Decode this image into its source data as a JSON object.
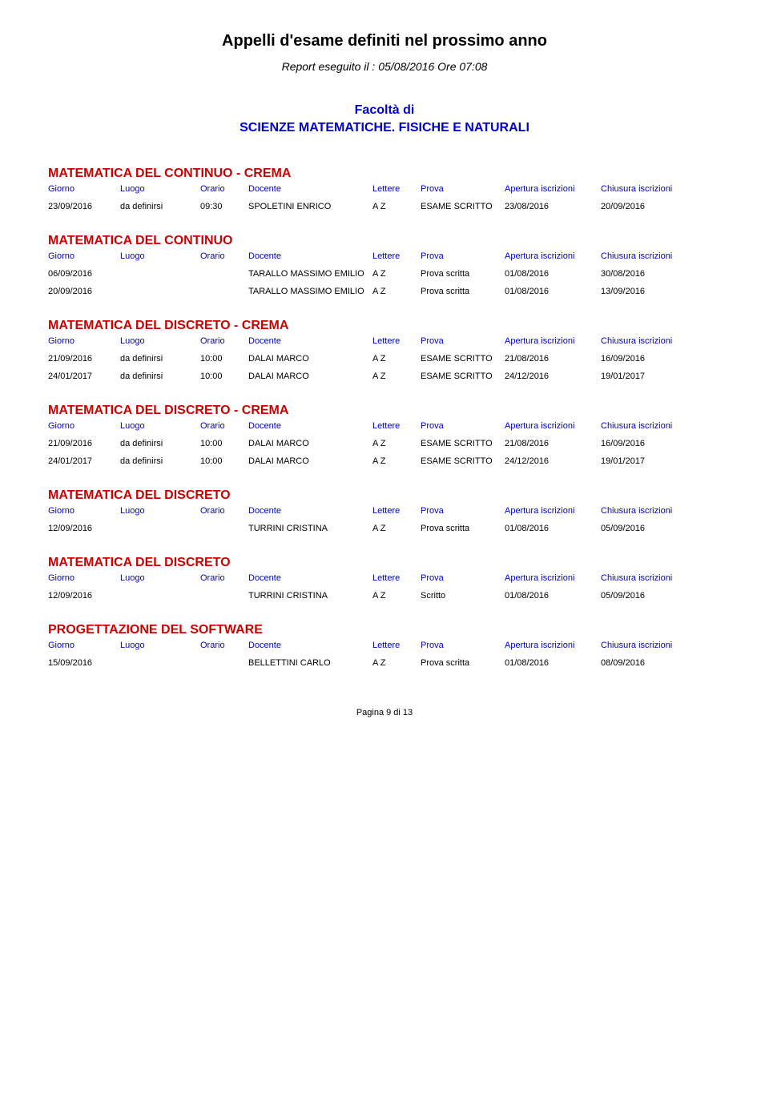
{
  "page": {
    "title": "Appelli d'esame definiti nel prossimo anno",
    "subtitle": "Report eseguito il : 05/08/2016 Ore 07:08",
    "faculty_line1": "Facoltà di",
    "faculty_line2": "SCIENZE MATEMATICHE. FISICHE E NATURALI",
    "footer": "Pagina 9 di 13"
  },
  "headers": {
    "giorno": "Giorno",
    "luogo": "Luogo",
    "orario": "Orario",
    "docente": "Docente",
    "lettere": "Lettere",
    "prova": "Prova",
    "apertura": "Apertura iscrizioni",
    "chiusura": "Chiusura iscrizioni"
  },
  "sections": [
    {
      "title": "MATEMATICA DEL CONTINUO - CREMA",
      "rows": [
        {
          "giorno": "23/09/2016",
          "luogo": "da definirsi",
          "orario": "09:30",
          "docente": "SPOLETINI ENRICO",
          "lettere": "A   Z",
          "prova": "ESAME SCRITTO",
          "apertura": "23/08/2016",
          "chiusura": "20/09/2016"
        }
      ]
    },
    {
      "title": "MATEMATICA DEL CONTINUO",
      "rows": [
        {
          "giorno": "06/09/2016",
          "luogo": "",
          "orario": "",
          "docente": "TARALLO MASSIMO EMILIO",
          "lettere": "A   Z",
          "prova": "Prova scritta",
          "apertura": "01/08/2016",
          "chiusura": "30/08/2016"
        },
        {
          "giorno": "20/09/2016",
          "luogo": "",
          "orario": "",
          "docente": "TARALLO MASSIMO EMILIO",
          "lettere": "A   Z",
          "prova": "Prova scritta",
          "apertura": "01/08/2016",
          "chiusura": "13/09/2016"
        }
      ]
    },
    {
      "title": "MATEMATICA DEL DISCRETO - CREMA",
      "rows": [
        {
          "giorno": "21/09/2016",
          "luogo": "da definirsi",
          "orario": "10:00",
          "docente": "DALAI MARCO",
          "lettere": "A   Z",
          "prova": "ESAME SCRITTO",
          "apertura": "21/08/2016",
          "chiusura": "16/09/2016"
        },
        {
          "giorno": "24/01/2017",
          "luogo": "da definirsi",
          "orario": "10:00",
          "docente": "DALAI MARCO",
          "lettere": "A   Z",
          "prova": "ESAME SCRITTO",
          "apertura": "24/12/2016",
          "chiusura": "19/01/2017"
        }
      ]
    },
    {
      "title": "MATEMATICA DEL DISCRETO - CREMA",
      "rows": [
        {
          "giorno": "21/09/2016",
          "luogo": "da definirsi",
          "orario": "10:00",
          "docente": "DALAI MARCO",
          "lettere": "A   Z",
          "prova": "ESAME SCRITTO",
          "apertura": "21/08/2016",
          "chiusura": "16/09/2016"
        },
        {
          "giorno": "24/01/2017",
          "luogo": "da definirsi",
          "orario": "10:00",
          "docente": "DALAI MARCO",
          "lettere": "A   Z",
          "prova": "ESAME SCRITTO",
          "apertura": "24/12/2016",
          "chiusura": "19/01/2017"
        }
      ]
    },
    {
      "title": "MATEMATICA DEL DISCRETO",
      "rows": [
        {
          "giorno": "12/09/2016",
          "luogo": "",
          "orario": "",
          "docente": "TURRINI CRISTINA",
          "lettere": "A   Z",
          "prova": "Prova scritta",
          "apertura": "01/08/2016",
          "chiusura": "05/09/2016"
        }
      ]
    },
    {
      "title": "MATEMATICA DEL DISCRETO",
      "rows": [
        {
          "giorno": "12/09/2016",
          "luogo": "",
          "orario": "",
          "docente": "TURRINI CRISTINA",
          "lettere": "A   Z",
          "prova": "Scritto",
          "apertura": "01/08/2016",
          "chiusura": "05/09/2016"
        }
      ]
    },
    {
      "title": "PROGETTAZIONE DEL SOFTWARE",
      "rows": [
        {
          "giorno": "15/09/2016",
          "luogo": "",
          "orario": "",
          "docente": "BELLETTINI CARLO",
          "lettere": "A   Z",
          "prova": "Prova scritta",
          "apertura": "01/08/2016",
          "chiusura": "08/09/2016"
        }
      ]
    }
  ],
  "colors": {
    "title_red": "#cc0000",
    "header_blue": "#0000cc",
    "text_black": "#000000",
    "background": "#ffffff"
  }
}
